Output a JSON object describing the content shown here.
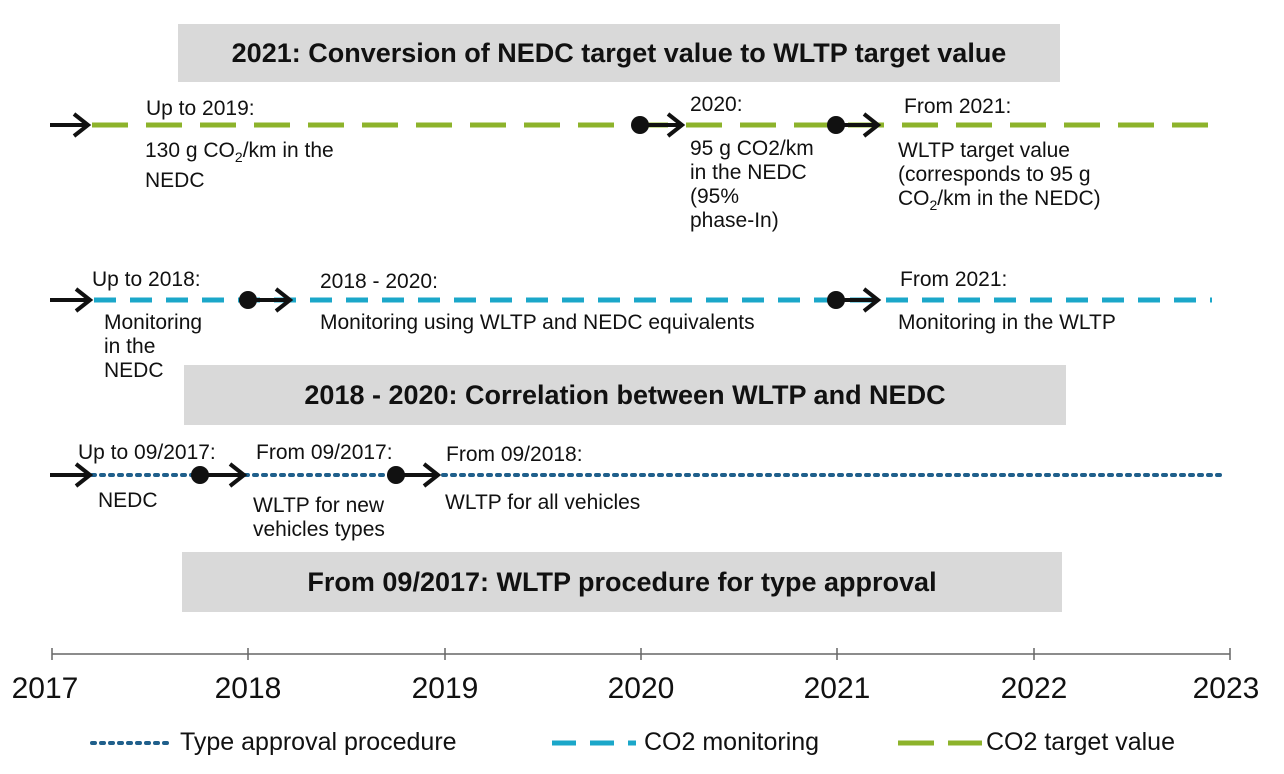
{
  "boxes": {
    "target": "2021: Conversion of NEDC target value to WLTP target value",
    "correlation": "2018 - 2020: Correlation  between WLTP and NEDC",
    "type_approval": "From 09/2017: WLTP procedure for type approval"
  },
  "target_row": {
    "up_to_2019": {
      "title": "Up to 2019:",
      "line1": "130 g CO",
      "sub": "2",
      "line1_end": "/km  in the",
      "line2": "NEDC"
    },
    "y2020": {
      "title": "2020:",
      "lines": [
        "95 g CO2/km",
        "in the NEDC",
        "(95%",
        "phase-In)"
      ]
    },
    "from_2021": {
      "title": "From 2021:",
      "line1": "WLTP target value",
      "line2": "(corresponds to 95 g",
      "line3_a": "CO",
      "line3_sub": "2",
      "line3_b": "/km  in the NEDC)"
    }
  },
  "monitoring_row": {
    "up_to_2018": {
      "title": "Up to 2018:",
      "lines": [
        "Monitoring",
        "in the",
        "NEDC"
      ]
    },
    "y2018_2020": {
      "title": "2018 - 2020:",
      "line": "Monitoring using WLTP and NEDC equivalents"
    },
    "from_2021": {
      "title": "From 2021:",
      "line": "Monitoring in the WLTP"
    }
  },
  "type_row": {
    "up_to_092017": {
      "title": "Up to 09/2017:",
      "line": "NEDC"
    },
    "from_092017": {
      "title": "From 09/2017:",
      "lines": [
        "WLTP for new",
        "vehicles types"
      ]
    },
    "from_092018": {
      "title": "From 09/2018:",
      "line": "WLTP for all vehicles"
    }
  },
  "axis": {
    "years": [
      "2017",
      "2018",
      "2019",
      "2020",
      "2021",
      "2022",
      "2023"
    ],
    "range": [
      2017,
      2023
    ]
  },
  "legend": {
    "type_approval": "Type approval procedure",
    "co2_monitoring": "CO2 monitoring",
    "co2_target": "CO2 target value"
  },
  "colors": {
    "target_line": "#8db32b",
    "monitoring_line": "#1ba7c9",
    "type_line": "#1f5f8b",
    "box_fill": "#d9d9d9",
    "marker": "#111111"
  },
  "icons": {
    "marker_start": "arrow-icon",
    "marker_transition": "dot-arrow-icon"
  }
}
